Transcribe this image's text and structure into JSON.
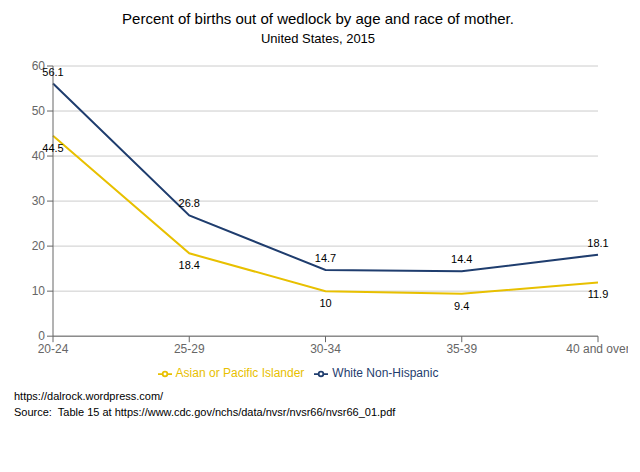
{
  "chart_data": {
    "type": "line",
    "title": "Percent of births out of wedlock by age and race of mother.",
    "subtitle": "United States, 2015",
    "categories": [
      "20-24",
      "25-29",
      "30-34",
      "35-39",
      "40 and over"
    ],
    "series": [
      {
        "name": "White Non-Hispanic",
        "color": "#1F3D6E",
        "values": [
          56.1,
          26.8,
          14.7,
          14.4,
          18.1
        ]
      },
      {
        "name": "Asian or Pacific Islander",
        "color": "#E8C000",
        "values": [
          44.5,
          18.4,
          10.0,
          9.4,
          11.9
        ]
      }
    ],
    "ylim": [
      0,
      60
    ],
    "yticks": [
      0,
      10,
      20,
      30,
      40,
      50,
      60
    ],
    "grid": true,
    "legend": "bottom",
    "data_labels": true,
    "annotations": [
      "https://dalrock.wordpress.com/",
      "Source:  Table 15 at https://www.cdc.gov/nchs/data/nvsr/nvsr66/nvsr66_01.pdf"
    ]
  }
}
